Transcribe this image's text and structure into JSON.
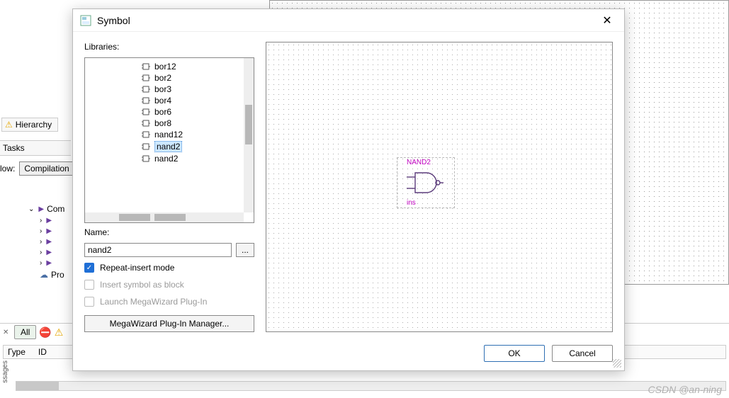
{
  "bg": {
    "hierarchy": "Hierarchy",
    "tasks": "Tasks",
    "flow_label": "low:",
    "flow_value": "Compilation",
    "tree": {
      "root": "Com",
      "children": [
        "",
        "",
        "",
        "",
        ""
      ],
      "last": "Pro"
    }
  },
  "messages": {
    "all": "All",
    "col_type": "Гуре",
    "col_id": "ID",
    "side": "ssages"
  },
  "watermark": "CSDN @an-ning",
  "dialog": {
    "title": "Symbol",
    "libraries_label": "Libraries:",
    "items": [
      "bor12",
      "bor2",
      "bor3",
      "bor4",
      "bor6",
      "bor8",
      "nand12",
      "nand2",
      "nand2"
    ],
    "selected_index": 7,
    "name_label": "Name:",
    "name_value": "nand2",
    "dots": "...",
    "chk_repeat": "Repeat-insert mode",
    "chk_block": "Insert symbol as block",
    "chk_mw": "Launch MegaWizard Plug-In",
    "mw_button": "MegaWizard Plug-In Manager...",
    "ok": "OK",
    "cancel": "Cancel",
    "preview": {
      "gate_label": "NAND2",
      "inst_label": "ins",
      "stroke": "#5a3a7a",
      "label_color": "#c000c0"
    }
  }
}
